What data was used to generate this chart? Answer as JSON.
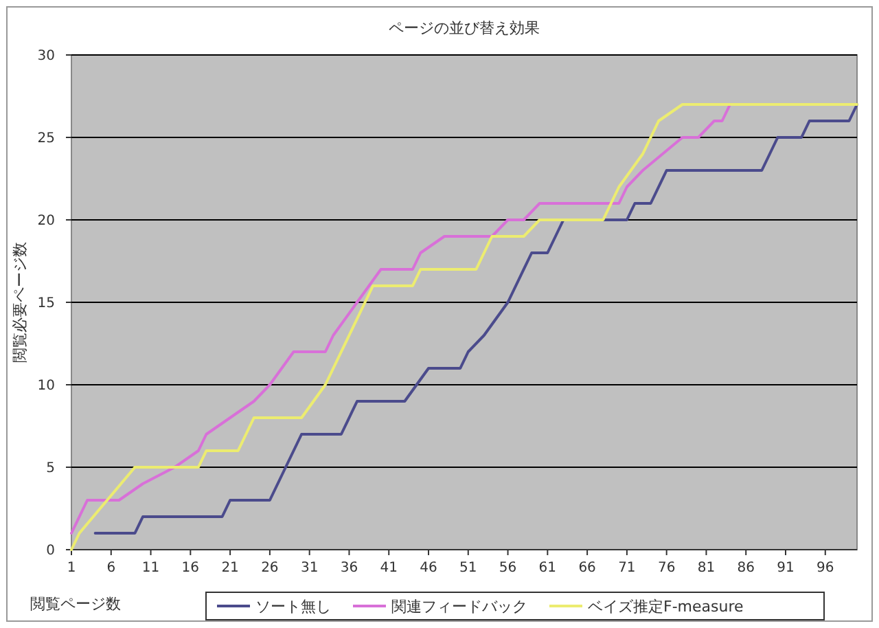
{
  "chart_data": {
    "type": "line",
    "title": "ページの並び替え効果",
    "xlabel": "閲覧ページ数",
    "ylabel": "閲覧必要ページ数",
    "xlim": [
      1,
      100
    ],
    "xticks": [
      1,
      6,
      11,
      16,
      21,
      26,
      31,
      36,
      41,
      46,
      51,
      56,
      61,
      66,
      71,
      76,
      81,
      86,
      91,
      96
    ],
    "ylim": [
      0,
      30
    ],
    "yticks": [
      0,
      5,
      10,
      15,
      20,
      25,
      30
    ],
    "grid": "y",
    "legend": "bottom",
    "marker": "none",
    "line_style": "solid",
    "series": [
      {
        "name": "ソート無し",
        "color": "#4b4b8c",
        "x": [
          4,
          9,
          10,
          20,
          21,
          26,
          30,
          35,
          37,
          43,
          46,
          50,
          51,
          53,
          56,
          59,
          61,
          63,
          71,
          72,
          74,
          76,
          88,
          89,
          90,
          93,
          94,
          99,
          100
        ],
        "values": [
          1,
          1,
          2,
          2,
          3,
          3,
          7,
          7,
          9,
          9,
          11,
          11,
          12,
          13,
          15,
          18,
          18,
          20,
          20,
          21,
          21,
          23,
          23,
          24,
          25,
          25,
          26,
          26,
          27
        ]
      },
      {
        "name": "関連フィードバック",
        "color": "#d870d8",
        "x": [
          1,
          3,
          7,
          10,
          14,
          17,
          18,
          21,
          24,
          26,
          29,
          33,
          34,
          37,
          40,
          44,
          45,
          48,
          54,
          56,
          58,
          60,
          64,
          70,
          71,
          73,
          78,
          80,
          82,
          83,
          84
        ],
        "values": [
          1,
          3,
          3,
          4,
          5,
          6,
          7,
          8,
          9,
          10,
          12,
          12,
          13,
          15,
          17,
          17,
          18,
          19,
          19,
          20,
          20,
          21,
          21,
          21,
          22,
          23,
          25,
          25,
          26,
          26,
          27
        ]
      },
      {
        "name": "ベイズ推定F-measure",
        "color": "#ecec70",
        "x": [
          1,
          2,
          9,
          17,
          18,
          22,
          24,
          30,
          33,
          39,
          44,
          45,
          52,
          54,
          58,
          60,
          68,
          69,
          70,
          73,
          75,
          78,
          100
        ],
        "values": [
          0,
          1,
          5,
          5,
          6,
          6,
          8,
          8,
          10,
          16,
          16,
          17,
          17,
          19,
          19,
          20,
          20,
          21,
          22,
          24,
          26,
          27,
          27
        ]
      }
    ]
  }
}
